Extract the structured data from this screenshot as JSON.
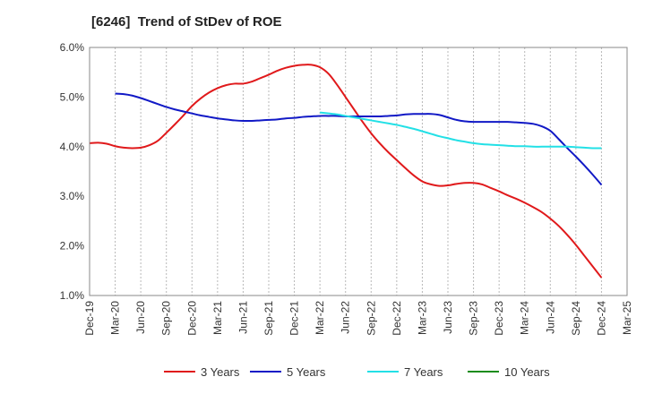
{
  "chart_data": {
    "type": "line",
    "title": "[6246]  Trend of StDev of ROE",
    "xlabel": "",
    "ylabel": "",
    "x_ticks": [
      "Dec-19",
      "Mar-20",
      "Jun-20",
      "Sep-20",
      "Dec-20",
      "Mar-21",
      "Jun-21",
      "Sep-21",
      "Dec-21",
      "Mar-22",
      "Jun-22",
      "Sep-22",
      "Dec-22",
      "Mar-23",
      "Jun-23",
      "Sep-23",
      "Dec-23",
      "Mar-24",
      "Jun-24",
      "Sep-24",
      "Dec-24",
      "Mar-25"
    ],
    "y_ticks": [
      "1.0%",
      "2.0%",
      "3.0%",
      "4.0%",
      "5.0%",
      "6.0%"
    ],
    "ylim": [
      1.0,
      6.0
    ],
    "grid": "vertical dashed",
    "legend_position": "bottom",
    "series": [
      {
        "name": "3 Years",
        "color": "#e0191b",
        "x": [
          "Dec-19",
          "Jan-20",
          "Feb-20",
          "Mar-20",
          "Apr-20",
          "May-20",
          "Jun-20",
          "Jul-20",
          "Aug-20",
          "Sep-20",
          "Oct-20",
          "Nov-20",
          "Dec-20",
          "Jan-21",
          "Feb-21",
          "Mar-21",
          "Apr-21",
          "May-21",
          "Jun-21",
          "Jul-21",
          "Aug-21",
          "Sep-21",
          "Oct-21",
          "Nov-21",
          "Dec-21",
          "Jan-22",
          "Feb-22",
          "Mar-22",
          "Apr-22",
          "May-22",
          "Jun-22",
          "Jul-22",
          "Aug-22",
          "Sep-22",
          "Oct-22",
          "Nov-22",
          "Dec-22",
          "Jan-23",
          "Feb-23",
          "Mar-23",
          "Apr-23",
          "May-23",
          "Jun-23",
          "Jul-23",
          "Aug-23",
          "Sep-23",
          "Oct-23",
          "Nov-23",
          "Dec-23",
          "Jan-24",
          "Feb-24",
          "Mar-24",
          "Apr-24",
          "May-24",
          "Jun-24",
          "Jul-24",
          "Aug-24",
          "Sep-24",
          "Oct-24",
          "Nov-24",
          "Dec-24"
        ],
        "values": [
          4.07,
          4.08,
          4.06,
          4.01,
          3.98,
          3.97,
          3.98,
          4.03,
          4.12,
          4.28,
          4.45,
          4.63,
          4.82,
          4.97,
          5.09,
          5.18,
          5.24,
          5.27,
          5.27,
          5.31,
          5.38,
          5.45,
          5.53,
          5.59,
          5.63,
          5.65,
          5.65,
          5.6,
          5.47,
          5.25,
          5.0,
          4.75,
          4.5,
          4.27,
          4.07,
          3.89,
          3.73,
          3.57,
          3.42,
          3.3,
          3.24,
          3.21,
          3.22,
          3.25,
          3.27,
          3.27,
          3.24,
          3.17,
          3.1,
          3.02,
          2.95,
          2.87,
          2.78,
          2.68,
          2.55,
          2.4,
          2.22,
          2.02,
          1.8,
          1.58,
          1.36
        ]
      },
      {
        "name": "5 Years",
        "color": "#1119c6",
        "x": [
          "Mar-20",
          "Apr-20",
          "May-20",
          "Jun-20",
          "Jul-20",
          "Aug-20",
          "Sep-20",
          "Oct-20",
          "Nov-20",
          "Dec-20",
          "Jan-21",
          "Feb-21",
          "Mar-21",
          "Apr-21",
          "May-21",
          "Jun-21",
          "Jul-21",
          "Aug-21",
          "Sep-21",
          "Oct-21",
          "Nov-21",
          "Dec-21",
          "Jan-22",
          "Feb-22",
          "Mar-22",
          "Apr-22",
          "May-22",
          "Jun-22",
          "Jul-22",
          "Aug-22",
          "Sep-22",
          "Oct-22",
          "Nov-22",
          "Dec-22",
          "Jan-23",
          "Feb-23",
          "Mar-23",
          "Apr-23",
          "May-23",
          "Jun-23",
          "Jul-23",
          "Aug-23",
          "Sep-23",
          "Oct-23",
          "Nov-23",
          "Dec-23",
          "Jan-24",
          "Feb-24",
          "Mar-24",
          "Apr-24",
          "May-24",
          "Jun-24",
          "Jul-24",
          "Aug-24",
          "Sep-24",
          "Oct-24",
          "Nov-24",
          "Dec-24"
        ],
        "values": [
          5.07,
          5.06,
          5.03,
          4.98,
          4.92,
          4.86,
          4.8,
          4.75,
          4.71,
          4.67,
          4.63,
          4.6,
          4.57,
          4.55,
          4.53,
          4.52,
          4.52,
          4.53,
          4.54,
          4.55,
          4.57,
          4.58,
          4.6,
          4.61,
          4.62,
          4.62,
          4.62,
          4.61,
          4.61,
          4.61,
          4.61,
          4.61,
          4.62,
          4.63,
          4.65,
          4.66,
          4.66,
          4.66,
          4.64,
          4.59,
          4.54,
          4.51,
          4.5,
          4.5,
          4.5,
          4.5,
          4.5,
          4.49,
          4.48,
          4.46,
          4.41,
          4.32,
          4.15,
          3.97,
          3.8,
          3.62,
          3.43,
          3.23
        ]
      },
      {
        "name": "7 Years",
        "color": "#23e0e6",
        "x": [
          "Mar-22",
          "Apr-22",
          "May-22",
          "Jun-22",
          "Jul-22",
          "Aug-22",
          "Sep-22",
          "Oct-22",
          "Nov-22",
          "Dec-22",
          "Jan-23",
          "Feb-23",
          "Mar-23",
          "Apr-23",
          "May-23",
          "Jun-23",
          "Jul-23",
          "Aug-23",
          "Sep-23",
          "Oct-23",
          "Nov-23",
          "Dec-23",
          "Jan-24",
          "Feb-24",
          "Mar-24",
          "Apr-24",
          "May-24",
          "Jun-24",
          "Jul-24",
          "Aug-24",
          "Sep-24",
          "Oct-24",
          "Nov-24",
          "Dec-24"
        ],
        "values": [
          4.69,
          4.67,
          4.65,
          4.62,
          4.59,
          4.56,
          4.53,
          4.5,
          4.47,
          4.44,
          4.4,
          4.36,
          4.31,
          4.26,
          4.21,
          4.17,
          4.13,
          4.1,
          4.07,
          4.05,
          4.04,
          4.03,
          4.02,
          4.01,
          4.01,
          4.0,
          4.0,
          4.0,
          4.0,
          4.0,
          3.99,
          3.98,
          3.97,
          3.97
        ]
      },
      {
        "name": "10 Years",
        "color": "#1c8c1c",
        "x": [],
        "values": []
      }
    ]
  }
}
